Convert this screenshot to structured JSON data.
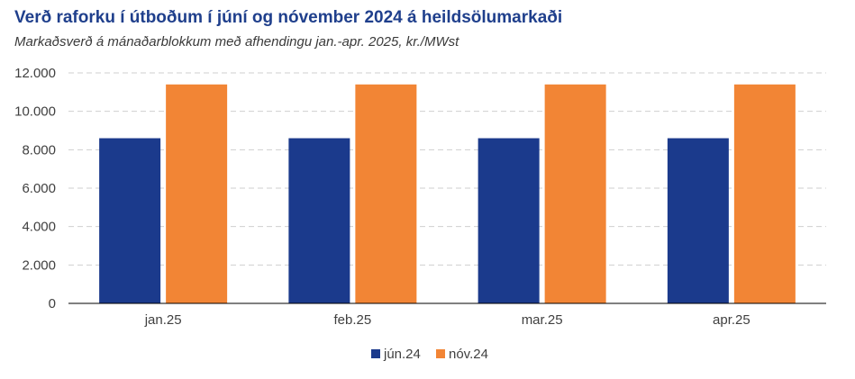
{
  "chart_data": {
    "type": "bar",
    "title": "Verð raforku í útboðum í júní og nóvember 2024 á heildsölumarkaði",
    "subtitle": "Markaðsverð  á mánaðarblokkum með afhendingu jan.-apr. 2025, kr./MWst",
    "categories": [
      "jan.25",
      "feb.25",
      "mar.25",
      "apr.25"
    ],
    "series": [
      {
        "name": "jún.24",
        "color": "#1b3a8c",
        "values": [
          8600,
          8600,
          8600,
          8600
        ]
      },
      {
        "name": "nóv.24",
        "color": "#f28535",
        "values": [
          11400,
          11400,
          11400,
          11400
        ]
      }
    ],
    "y_ticks": [
      "0",
      "2.000",
      "4.000",
      "6.000",
      "8.000",
      "10.000",
      "12.000"
    ],
    "y_tick_values": [
      0,
      2000,
      4000,
      6000,
      8000,
      10000,
      12000
    ],
    "ylim": [
      0,
      12000
    ],
    "grid": true,
    "legend_position": "bottom"
  }
}
